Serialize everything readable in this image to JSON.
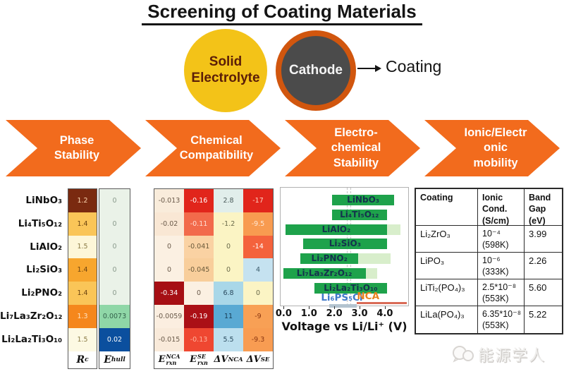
{
  "figure_title": "Screening of Coating Materials",
  "schematic": {
    "solid_electrolyte_label": [
      "Solid",
      "Electrolyte"
    ],
    "cathode_label": "Cathode",
    "coating_label": "Coating",
    "electrolyte_color": "#f3c318",
    "cathode_color": "#4b4b4b",
    "coating_ring_color": "#d1560e"
  },
  "banners": [
    {
      "lines": [
        "Phase",
        "Stability"
      ]
    },
    {
      "lines": [
        "Chemical",
        "Compatibility"
      ]
    },
    {
      "lines": [
        "Electro-",
        "chemical",
        "Stability"
      ]
    },
    {
      "lines": [
        "Ionic/Electr",
        "onic",
        "mobility"
      ]
    }
  ],
  "banner_color": "#f26b1d",
  "materials": [
    "LiNbO₃",
    "Li₄Ti₅O₁₂",
    "LiAlO₂",
    "Li₂SiO₃",
    "Li₂PNO₂",
    "Li₇La₃Zr₂O₁₂",
    "Li₂La₂Ti₃O₁₀"
  ],
  "heat1": {
    "columns": [
      {
        "base": "R",
        "sub": "c",
        "sup": ""
      },
      {
        "base": "E",
        "sub": "hull",
        "sup": ""
      }
    ],
    "cells": [
      [
        {
          "v": "1.2",
          "bg": "#7a2a10",
          "fg": "#ffd9b3"
        },
        {
          "v": "0",
          "bg": "#eaf2e8",
          "fg": "#8a9a8c"
        }
      ],
      [
        {
          "v": "1.4",
          "bg": "#fac558",
          "fg": "#6b4310"
        },
        {
          "v": "0",
          "bg": "#eaf2e8",
          "fg": "#8a9a8c"
        }
      ],
      [
        {
          "v": "1.5",
          "bg": "#fdf6d8",
          "fg": "#8a7a45"
        },
        {
          "v": "0",
          "bg": "#eaf2e8",
          "fg": "#8a9a8c"
        }
      ],
      [
        {
          "v": "1.4",
          "bg": "#f7a62e",
          "fg": "#6b4310"
        },
        {
          "v": "0",
          "bg": "#eaf2e8",
          "fg": "#8a9a8c"
        }
      ],
      [
        {
          "v": "1.4",
          "bg": "#fac558",
          "fg": "#6b4310"
        },
        {
          "v": "0",
          "bg": "#eaf2e8",
          "fg": "#8a9a8c"
        }
      ],
      [
        {
          "v": "1.3",
          "bg": "#f5871c",
          "fg": "#ffe4c4"
        },
        {
          "v": "0.0073",
          "bg": "#8fd7a7",
          "fg": "#33614a"
        }
      ],
      [
        {
          "v": "1.5",
          "bg": "#fdf9e3",
          "fg": "#8a7a45"
        },
        {
          "v": "0.02",
          "bg": "#0b4f9e",
          "fg": "#ffffff"
        }
      ]
    ]
  },
  "heat2": {
    "columns": [
      {
        "base": "E",
        "sub": "rxn",
        "sup": "NCA"
      },
      {
        "base": "E",
        "sub": "rxn",
        "sup": "SE"
      },
      {
        "base": "ΔV",
        "sub": "",
        "sup": "NCA"
      },
      {
        "base": "ΔV",
        "sub": "",
        "sup": "SE"
      }
    ],
    "cells": [
      [
        {
          "v": "-0.013",
          "bg": "#f9ecdb",
          "fg": "#6a5a4a"
        },
        {
          "v": "-0.16",
          "bg": "#e1251b",
          "fg": "#ffffff"
        },
        {
          "v": "2.8",
          "bg": "#e1eeeb",
          "fg": "#4a5a5a"
        },
        {
          "v": "-17",
          "bg": "#e1251b",
          "fg": "#ffd0c0"
        }
      ],
      [
        {
          "v": "-0.02",
          "bg": "#f9e7d4",
          "fg": "#6a5a4a"
        },
        {
          "v": "-0.11",
          "bg": "#f26a4b",
          "fg": "#ffe0d5"
        },
        {
          "v": "-1.2",
          "bg": "#fbf4c4",
          "fg": "#6a6a4a"
        },
        {
          "v": "-9.5",
          "bg": "#f89b50",
          "fg": "#ffe8d5"
        }
      ],
      [
        {
          "v": "0",
          "bg": "#fbf0e2",
          "fg": "#6a5a4a"
        },
        {
          "v": "-0.041",
          "bg": "#fad2a3",
          "fg": "#6a5a3a"
        },
        {
          "v": "0",
          "bg": "#fbf4c4",
          "fg": "#6a6a4a"
        },
        {
          "v": "-14",
          "bg": "#f4623c",
          "fg": "#ffffff"
        }
      ],
      [
        {
          "v": "0",
          "bg": "#fbf0e2",
          "fg": "#6a5a4a"
        },
        {
          "v": "-0.045",
          "bg": "#f8ce9b",
          "fg": "#6a5a3a"
        },
        {
          "v": "0",
          "bg": "#fbf4c4",
          "fg": "#6a6a4a"
        },
        {
          "v": "4",
          "bg": "#c5e2f0",
          "fg": "#3a5a6a"
        }
      ],
      [
        {
          "v": "-0.34",
          "bg": "#a60f14",
          "fg": "#ffffff"
        },
        {
          "v": "0",
          "bg": "#fbf0e2",
          "fg": "#6a5a4a"
        },
        {
          "v": "6.8",
          "bg": "#a9d7e8",
          "fg": "#2a4a5e"
        },
        {
          "v": "0",
          "bg": "#fbf4c4",
          "fg": "#6a6a4a"
        }
      ],
      [
        {
          "v": "-0.0059",
          "bg": "#fbeee0",
          "fg": "#6a5a4a"
        },
        {
          "v": "-0.19",
          "bg": "#ab1016",
          "fg": "#ffffff"
        },
        {
          "v": "11",
          "bg": "#59a9d3",
          "fg": "#173a52"
        },
        {
          "v": "-9",
          "bg": "#f8a055",
          "fg": "#8a3510"
        }
      ],
      [
        {
          "v": "-0.015",
          "bg": "#f9eada",
          "fg": "#6a5a4a"
        },
        {
          "v": "-0.13",
          "bg": "#ef4731",
          "fg": "#ffb5a0"
        },
        {
          "v": "5.5",
          "bg": "#bcdfee",
          "fg": "#2a4a5e"
        },
        {
          "v": "-9.3",
          "bg": "#f89c52",
          "fg": "#8a3510"
        }
      ]
    ]
  },
  "chart_data": [
    {
      "type": "heatmap",
      "title": "Phase Stability",
      "rows": [
        "LiNbO3",
        "Li4Ti5O12",
        "LiAlO2",
        "Li2SiO3",
        "Li2PNO2",
        "Li7La3Zr2O12",
        "Li2La2Ti3O10"
      ],
      "columns": [
        "Rc",
        "Ehull"
      ],
      "values": [
        [
          1.2,
          0
        ],
        [
          1.4,
          0
        ],
        [
          1.5,
          0
        ],
        [
          1.4,
          0
        ],
        [
          1.4,
          0
        ],
        [
          1.3,
          0.0073
        ],
        [
          1.5,
          0.02
        ]
      ]
    },
    {
      "type": "heatmap",
      "title": "Chemical Compatibility",
      "rows": [
        "LiNbO3",
        "Li4Ti5O12",
        "LiAlO2",
        "Li2SiO3",
        "Li2PNO2",
        "Li7La3Zr2O12",
        "Li2La2Ti3O10"
      ],
      "columns": [
        "Erxn_NCA",
        "Erxn_SE",
        "dV_NCA",
        "dV_SE"
      ],
      "values": [
        [
          -0.013,
          -0.16,
          2.8,
          -17
        ],
        [
          -0.02,
          -0.11,
          -1.2,
          -9.5
        ],
        [
          0,
          -0.041,
          0,
          -14
        ],
        [
          0,
          -0.045,
          0,
          4
        ],
        [
          -0.34,
          0,
          6.8,
          0
        ],
        [
          -0.0059,
          -0.19,
          11,
          -9
        ],
        [
          -0.015,
          -0.13,
          5.5,
          -9.3
        ]
      ]
    },
    {
      "type": "bar",
      "variant": "horizontal-range",
      "title": "Electro-chemical Stability",
      "xlabel": "Voltage vs Li/Li⁺ (V)",
      "xlim": [
        -0.15,
        4.95
      ],
      "xticks": [
        {
          "v": 0,
          "label": "0.0"
        },
        {
          "v": 1,
          "label": "1.0"
        },
        {
          "v": 2,
          "label": "2.0"
        },
        {
          "v": 3,
          "label": "3.0"
        },
        {
          "v": 4,
          "label": "4.0"
        }
      ],
      "dashed_lines": [
        2.5,
        2.65
      ],
      "bar_color": "#1ea24b",
      "metastable_color": "#d8eecb",
      "bar_label_color": "#14324d",
      "series": [
        {
          "label": "LiNbO₃",
          "stable": [
            1.9,
            4.4
          ],
          "metastable": null
        },
        {
          "label": "Li₄Ti₅O₁₂",
          "stable": [
            1.9,
            4.1
          ],
          "metastable": null
        },
        {
          "label": "LiAlO₂",
          "stable": [
            0.05,
            4.1
          ],
          "metastable": [
            4.1,
            4.65
          ]
        },
        {
          "label": "Li₂SiO₃",
          "stable": [
            0.75,
            4.1
          ],
          "metastable": null
        },
        {
          "label": "Li₂PNO₂",
          "stable": [
            0.65,
            2.95
          ],
          "metastable": [
            2.95,
            4.25
          ]
        },
        {
          "label": "Li₇La₃Zr₂O₁₂",
          "stable": [
            -0.05,
            3.25
          ],
          "metastable": [
            3.25,
            3.7
          ]
        },
        {
          "label": "Li₂La₂Ti₃O₁₀",
          "stable": [
            1.2,
            4.1
          ],
          "metastable": null
        }
      ],
      "references": [
        {
          "label": "Li₆PS₅Cl",
          "range": [
            1.8,
            2.9
          ],
          "style": "bar",
          "color": "#b3c3cf",
          "label_color": "#4079c9",
          "label_at": 2.3
        },
        {
          "label": "NCA",
          "range": [
            2.9,
            4.9
          ],
          "style": "line",
          "color": "#d96b57",
          "label_color": "#e8821e",
          "label_at": 3.35
        }
      ]
    },
    {
      "type": "table",
      "title": "Ionic/Electronic mobility",
      "columns": [
        "Coating",
        "Ionic Cond. (S/cm)",
        "Band Gap (eV)"
      ],
      "rows": [
        [
          "Li2ZrO3",
          "10⁻⁴ (598K)",
          "3.99"
        ],
        [
          "LiPO3",
          "10⁻⁶ (333K)",
          "2.26"
        ],
        [
          "LiTi2(PO4)3",
          "2.5*10⁻⁸ (553K)",
          "5.60"
        ],
        [
          "LiLa(PO4)3",
          "6.35*10⁻⁸ (553K)",
          "5.22"
        ]
      ]
    }
  ],
  "table": {
    "headers": [
      [
        "Coating"
      ],
      [
        "Ionic",
        "Cond.",
        "(S/cm)"
      ],
      [
        "Band",
        "Gap",
        "(eV)"
      ]
    ],
    "rows": [
      {
        "coating": "Li₂ZrO₃",
        "cond": "10⁻⁴",
        "temp": "(598K)",
        "gap": "3.99"
      },
      {
        "coating": "LiPO₃",
        "cond": "10⁻⁶",
        "temp": "(333K)",
        "gap": "2.26"
      },
      {
        "coating": "LiTi₂(PO₄)₃",
        "cond": "2.5*10⁻⁸",
        "temp": "(553K)",
        "gap": "5.60"
      },
      {
        "coating": "LiLa(PO₄)₃",
        "cond": "6.35*10⁻⁸",
        "temp": "(553K)",
        "gap": "5.22"
      }
    ]
  },
  "watermark": {
    "text": "能源学人"
  }
}
